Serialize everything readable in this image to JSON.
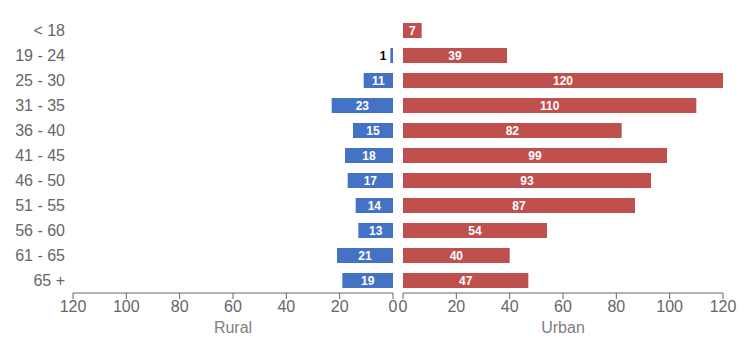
{
  "chart_data": [
    {
      "type": "bar",
      "orientation": "horizontal",
      "x_label": "Rural",
      "categories": [
        "< 18",
        "19 - 24",
        "25 - 30",
        "31 - 35",
        "36 - 40",
        "41 - 45",
        "46 - 50",
        "51 - 55",
        "56 - 60",
        "61 - 65",
        "65 +"
      ],
      "values": [
        0,
        1,
        11,
        23,
        15,
        18,
        17,
        14,
        13,
        21,
        19
      ],
      "color": "#4472C4",
      "xlim": [
        120,
        0
      ],
      "xticks": [
        120,
        100,
        80,
        60,
        40,
        20,
        0
      ],
      "data_labels": true,
      "grid": false
    },
    {
      "type": "bar",
      "orientation": "horizontal",
      "x_label": "Urban",
      "categories": [
        "< 18",
        "19 - 24",
        "25 - 30",
        "31 - 35",
        "36 - 40",
        "41 - 45",
        "46 - 50",
        "51 - 55",
        "56 - 60",
        "61 - 65",
        "65 +"
      ],
      "values": [
        7,
        39,
        120,
        110,
        82,
        99,
        93,
        87,
        54,
        40,
        47
      ],
      "color": "#C0504D",
      "xlim": [
        0,
        120
      ],
      "xticks": [
        0,
        20,
        40,
        60,
        80,
        100,
        120
      ],
      "data_labels": true,
      "grid": false,
      "tick_labels": "x"
    }
  ]
}
